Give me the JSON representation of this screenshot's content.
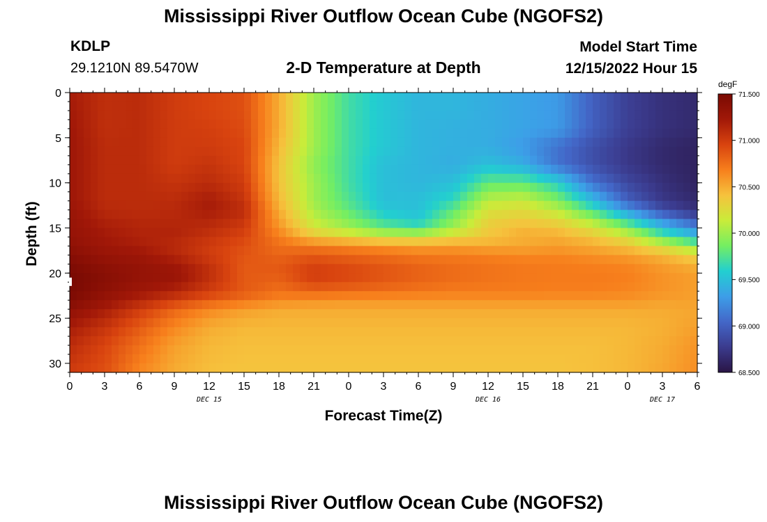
{
  "header": {
    "title": "Mississippi River Outflow Ocean Cube (NGOFS2)",
    "station_id": "KDLP",
    "station_coords": "29.1210N  89.5470W",
    "subtitle": "2-D Temperature at Depth",
    "model_start_label": "Model Start Time",
    "model_start_value": "12/15/2022 Hour 15"
  },
  "footer": {
    "title": "Mississippi River Outflow Ocean Cube (NGOFS2)"
  },
  "chart_data": {
    "type": "heatmap",
    "title": "2-D Temperature at Depth",
    "xlabel": "Forecast Time(Z)",
    "ylabel": "Depth (ft)",
    "x_range_hours": [
      0,
      54
    ],
    "ylim": [
      0,
      31
    ],
    "y_inverted": true,
    "x_tick_hours": [
      0,
      3,
      6,
      9,
      12,
      15,
      18,
      21,
      24,
      27,
      30,
      33,
      36,
      39,
      42,
      45,
      48,
      51,
      54
    ],
    "x_tick_labels": [
      "0",
      "3",
      "6",
      "9",
      "12",
      "15",
      "18",
      "21",
      "0",
      "3",
      "6",
      "9",
      "12",
      "15",
      "18",
      "21",
      "0",
      "3",
      "6"
    ],
    "y_ticks": [
      0,
      5,
      10,
      15,
      20,
      25,
      30
    ],
    "y_tick_labels": [
      "0",
      "5",
      "10",
      "15",
      "20",
      "25",
      "30"
    ],
    "date_labels": [
      {
        "hour": 12,
        "label": "DEC 15"
      },
      {
        "hour": 36,
        "label": "DEC 16"
      },
      {
        "hour": 51,
        "label": "DEC 17"
      }
    ],
    "colorbar": {
      "unit": "degF",
      "min": 68.5,
      "max": 71.5,
      "ticks": [
        71.5,
        71.0,
        70.5,
        70.0,
        69.5,
        69.0,
        68.5
      ],
      "tick_labels": [
        "71.500",
        "71.000",
        "70.500",
        "70.000",
        "69.500",
        "69.000",
        "68.500"
      ],
      "colors": [
        "#2a1545",
        "#3b3b8e",
        "#4367c8",
        "#3d9ee8",
        "#22cfd0",
        "#74ee62",
        "#c9ec3a",
        "#f6c23d",
        "#f77f1c",
        "#d8430f",
        "#a11808",
        "#7a0a03"
      ]
    },
    "depth_levels_ft": [
      0,
      2,
      4,
      6,
      8,
      10,
      12,
      13,
      14,
      15,
      16,
      17,
      18,
      19,
      20,
      21,
      22,
      23,
      24,
      26,
      28,
      31
    ],
    "temperature_degF": [
      [
        71.2,
        71.08,
        71.1,
        71.0,
        70.95,
        70.9,
        70.5,
        70.0,
        69.7,
        69.55,
        69.45,
        69.45,
        69.4,
        69.35,
        69.3,
        69.0,
        68.8,
        68.7,
        68.65
      ],
      [
        71.22,
        71.08,
        71.1,
        71.0,
        70.95,
        70.9,
        70.5,
        70.0,
        69.7,
        69.55,
        69.45,
        69.45,
        69.4,
        69.35,
        69.3,
        69.0,
        68.8,
        68.7,
        68.65
      ],
      [
        71.24,
        71.08,
        71.1,
        71.0,
        70.98,
        70.92,
        70.5,
        70.0,
        69.7,
        69.55,
        69.45,
        69.42,
        69.4,
        69.35,
        69.3,
        69.0,
        68.8,
        68.7,
        68.65
      ],
      [
        71.25,
        71.1,
        71.1,
        71.0,
        71.0,
        70.95,
        70.45,
        70.0,
        69.7,
        69.55,
        69.45,
        69.42,
        69.4,
        69.3,
        69.1,
        68.9,
        68.75,
        68.65,
        68.6
      ],
      [
        71.25,
        71.1,
        71.1,
        71.0,
        71.05,
        70.95,
        70.4,
        69.95,
        69.7,
        69.5,
        69.45,
        69.4,
        69.5,
        69.4,
        69.1,
        68.9,
        68.75,
        68.65,
        68.6
      ],
      [
        71.25,
        71.1,
        71.1,
        71.05,
        71.1,
        71.0,
        70.4,
        70.0,
        69.7,
        69.5,
        69.45,
        69.5,
        69.8,
        69.8,
        69.6,
        69.1,
        68.85,
        68.7,
        68.6
      ],
      [
        71.25,
        71.1,
        71.1,
        71.1,
        71.2,
        71.05,
        70.45,
        70.0,
        69.75,
        69.5,
        69.5,
        69.65,
        70.1,
        70.15,
        69.9,
        69.5,
        69.0,
        68.75,
        68.65
      ],
      [
        71.28,
        71.12,
        71.1,
        71.12,
        71.2,
        71.1,
        70.5,
        70.05,
        69.8,
        69.55,
        69.5,
        69.8,
        70.2,
        70.25,
        70.1,
        69.7,
        69.3,
        68.9,
        68.7
      ],
      [
        71.3,
        71.15,
        71.12,
        71.12,
        71.15,
        71.05,
        70.55,
        70.1,
        69.9,
        69.65,
        69.55,
        69.9,
        70.3,
        70.35,
        70.25,
        70.0,
        69.6,
        69.2,
        68.9
      ],
      [
        71.3,
        71.2,
        71.15,
        71.15,
        71.1,
        71.0,
        70.6,
        70.2,
        70.0,
        69.8,
        69.7,
        70.0,
        70.35,
        70.45,
        70.4,
        70.2,
        69.9,
        69.5,
        69.2
      ],
      [
        71.32,
        71.22,
        71.15,
        71.15,
        71.05,
        70.95,
        70.7,
        70.4,
        70.3,
        70.2,
        70.2,
        70.3,
        70.4,
        70.5,
        70.5,
        70.4,
        70.2,
        69.8,
        69.5
      ],
      [
        71.35,
        71.25,
        71.2,
        71.1,
        71.0,
        70.9,
        70.75,
        70.7,
        70.65,
        70.6,
        70.55,
        70.55,
        70.5,
        70.5,
        70.55,
        70.5,
        70.4,
        70.2,
        69.9
      ],
      [
        71.4,
        71.3,
        71.25,
        71.15,
        71.0,
        70.88,
        70.8,
        70.85,
        70.8,
        70.75,
        70.7,
        70.7,
        70.68,
        70.65,
        70.65,
        70.6,
        70.55,
        70.45,
        70.3
      ],
      [
        71.45,
        71.35,
        71.3,
        71.22,
        71.05,
        70.85,
        70.85,
        70.95,
        70.9,
        70.85,
        70.8,
        70.75,
        70.72,
        70.7,
        70.7,
        70.68,
        70.65,
        70.55,
        70.45
      ],
      [
        71.5,
        71.4,
        71.32,
        71.3,
        71.1,
        70.85,
        70.85,
        71.0,
        70.95,
        70.88,
        70.82,
        70.78,
        70.75,
        70.72,
        70.7,
        70.7,
        70.68,
        70.6,
        70.55
      ],
      [
        71.5,
        71.4,
        71.3,
        71.25,
        71.05,
        70.85,
        70.8,
        70.95,
        70.9,
        70.85,
        70.8,
        70.75,
        70.72,
        70.7,
        70.7,
        70.7,
        70.68,
        70.6,
        70.55
      ],
      [
        71.5,
        71.35,
        71.25,
        71.15,
        71.0,
        70.85,
        70.75,
        70.8,
        70.78,
        70.75,
        70.72,
        70.7,
        70.7,
        70.7,
        70.68,
        70.68,
        70.65,
        70.6,
        70.55
      ],
      [
        71.45,
        71.3,
        71.15,
        71.0,
        70.85,
        70.75,
        70.65,
        70.62,
        70.6,
        70.6,
        70.6,
        70.6,
        70.6,
        70.6,
        70.6,
        70.6,
        70.6,
        70.55,
        70.55
      ],
      [
        71.35,
        71.2,
        71.0,
        70.8,
        70.65,
        70.55,
        70.5,
        70.5,
        70.5,
        70.5,
        70.5,
        70.5,
        70.5,
        70.5,
        70.5,
        70.5,
        70.5,
        70.5,
        70.52
      ],
      [
        71.2,
        71.05,
        70.85,
        70.65,
        70.5,
        70.45,
        70.45,
        70.45,
        70.45,
        70.45,
        70.45,
        70.45,
        70.45,
        70.45,
        70.45,
        70.45,
        70.45,
        70.48,
        70.55
      ],
      [
        71.1,
        70.95,
        70.75,
        70.55,
        70.45,
        70.42,
        70.42,
        70.42,
        70.42,
        70.42,
        70.42,
        70.42,
        70.42,
        70.42,
        70.42,
        70.42,
        70.45,
        70.5,
        70.6
      ],
      [
        71.0,
        70.9,
        70.65,
        70.5,
        70.42,
        70.4,
        70.4,
        70.4,
        70.4,
        70.4,
        70.4,
        70.4,
        70.4,
        70.4,
        70.4,
        70.42,
        70.45,
        70.52,
        70.62
      ]
    ]
  }
}
